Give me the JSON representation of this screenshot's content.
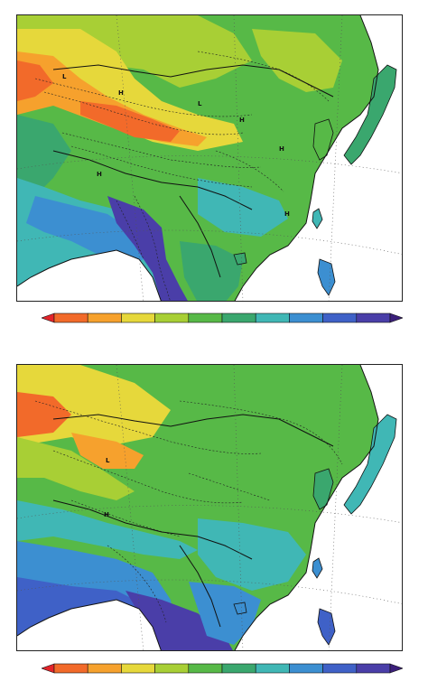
{
  "colors": {
    "scale": [
      "#e4242a",
      "#f26a2a",
      "#f6a12d",
      "#e6d83b",
      "#a8cf35",
      "#57b947",
      "#3aa76e",
      "#40b7b5",
      "#3c8fd1",
      "#3f61c7",
      "#4a3ea8",
      "#3b1f7a"
    ],
    "ocean": "#ffffff",
    "border": "#111111",
    "grid": "#555555"
  },
  "top_map": {
    "markers": [
      {
        "label": "L"
      },
      {
        "label": "H"
      },
      {
        "label": "H"
      },
      {
        "label": "H"
      },
      {
        "label": "L"
      },
      {
        "label": "H"
      },
      {
        "label": "H"
      }
    ]
  },
  "bottom_map": {
    "markers": [
      {
        "label": "L"
      },
      {
        "label": "H"
      }
    ]
  }
}
